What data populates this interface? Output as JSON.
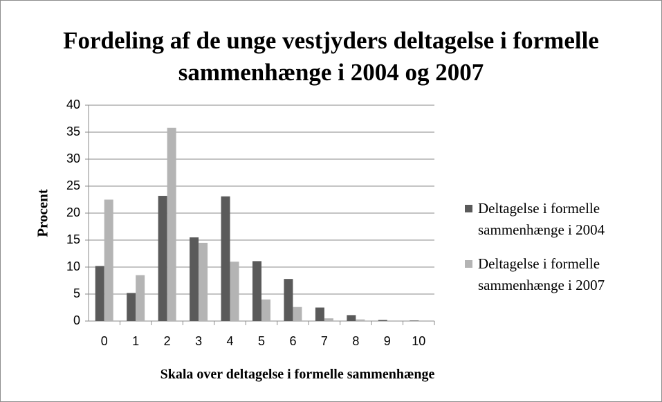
{
  "chart_data": {
    "type": "bar",
    "title": "Fordeling af de unge vestjyders deltagelse i formelle sammenhænge i 2004 og 2007",
    "x_label": "Skala over deltagelse i formelle sammenhænge",
    "y_label": "Procent",
    "categories": [
      "0",
      "1",
      "2",
      "3",
      "4",
      "5",
      "6",
      "7",
      "8",
      "9",
      "10"
    ],
    "series": [
      {
        "name": "Deltagelse i formelle sammenhænge i 2004",
        "color": "#5a5a5a",
        "values": [
          10.2,
          5.2,
          23.2,
          15.5,
          23.1,
          11.1,
          7.8,
          2.5,
          1.1,
          0.2,
          0.1
        ]
      },
      {
        "name": "Deltagelse i formelle sammenhænge i 2007",
        "color": "#b4b4b4",
        "values": [
          22.5,
          8.5,
          35.8,
          14.5,
          11.0,
          4.0,
          2.6,
          0.5,
          0.3,
          0.1,
          0
        ]
      }
    ],
    "ylim": [
      0,
      40
    ],
    "yticks": [
      0,
      5,
      10,
      15,
      20,
      25,
      30,
      35,
      40
    ],
    "grid": true,
    "legend": "right"
  }
}
